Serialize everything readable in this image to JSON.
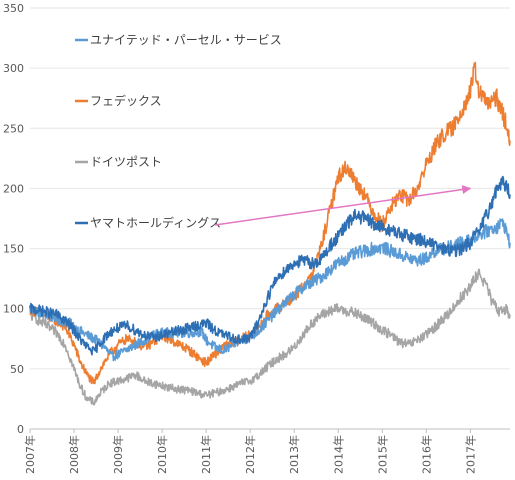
{
  "chart_data": {
    "type": "line",
    "title": "",
    "xlabel": "",
    "ylabel": "",
    "ylim": [
      0,
      350
    ],
    "yticks": [
      0,
      50,
      100,
      150,
      200,
      250,
      300,
      350
    ],
    "xlim": [
      2007.0,
      2017.9
    ],
    "xticks": [
      {
        "x": 2007,
        "label": "2007年"
      },
      {
        "x": 2008,
        "label": "2008年"
      },
      {
        "x": 2009,
        "label": "2009年"
      },
      {
        "x": 2010,
        "label": "2010年"
      },
      {
        "x": 2011,
        "label": "2011年"
      },
      {
        "x": 2012,
        "label": "2012年"
      },
      {
        "x": 2013,
        "label": "2013年"
      },
      {
        "x": 2014,
        "label": "2014年"
      },
      {
        "x": 2015,
        "label": "2015年"
      },
      {
        "x": 2016,
        "label": "2016年"
      },
      {
        "x": 2017,
        "label": "2017年"
      }
    ],
    "grid": "horizontal",
    "legend_placement": "inside-left",
    "series": [
      {
        "name": "ユナイテッド・パーセル・サービス",
        "color": "#5b9bd5",
        "points": [
          [
            2007.0,
            100
          ],
          [
            2007.3,
            96
          ],
          [
            2007.6,
            92
          ],
          [
            2007.9,
            88
          ],
          [
            2008.1,
            82
          ],
          [
            2008.3,
            78
          ],
          [
            2008.5,
            74
          ],
          [
            2008.7,
            68
          ],
          [
            2008.85,
            60
          ],
          [
            2009.0,
            62
          ],
          [
            2009.2,
            66
          ],
          [
            2009.4,
            70
          ],
          [
            2009.6,
            74
          ],
          [
            2009.8,
            78
          ],
          [
            2010.0,
            80
          ],
          [
            2010.3,
            80
          ],
          [
            2010.6,
            80
          ],
          [
            2010.9,
            81
          ],
          [
            2011.0,
            74
          ],
          [
            2011.2,
            68
          ],
          [
            2011.4,
            65
          ],
          [
            2011.6,
            70
          ],
          [
            2011.8,
            74
          ],
          [
            2012.0,
            76
          ],
          [
            2012.2,
            82
          ],
          [
            2012.4,
            90
          ],
          [
            2012.6,
            98
          ],
          [
            2012.8,
            105
          ],
          [
            2013.0,
            112
          ],
          [
            2013.2,
            118
          ],
          [
            2013.4,
            122
          ],
          [
            2013.6,
            126
          ],
          [
            2013.8,
            132
          ],
          [
            2014.0,
            138
          ],
          [
            2014.2,
            142
          ],
          [
            2014.4,
            146
          ],
          [
            2014.6,
            148
          ],
          [
            2014.8,
            150
          ],
          [
            2015.0,
            151
          ],
          [
            2015.2,
            148
          ],
          [
            2015.4,
            145
          ],
          [
            2015.6,
            142
          ],
          [
            2015.8,
            140
          ],
          [
            2016.0,
            142
          ],
          [
            2016.2,
            148
          ],
          [
            2016.4,
            150
          ],
          [
            2016.6,
            152
          ],
          [
            2016.8,
            155
          ],
          [
            2017.0,
            158
          ],
          [
            2017.2,
            162
          ],
          [
            2017.4,
            165
          ],
          [
            2017.6,
            168
          ],
          [
            2017.75,
            172
          ],
          [
            2017.85,
            160
          ],
          [
            2017.9,
            155
          ]
        ]
      },
      {
        "name": "フェデックス",
        "color": "#ed7d31",
        "points": [
          [
            2007.0,
            100
          ],
          [
            2007.3,
            95
          ],
          [
            2007.6,
            90
          ],
          [
            2007.8,
            85
          ],
          [
            2008.0,
            70
          ],
          [
            2008.15,
            55
          ],
          [
            2008.3,
            45
          ],
          [
            2008.45,
            38
          ],
          [
            2008.6,
            50
          ],
          [
            2008.8,
            62
          ],
          [
            2009.0,
            70
          ],
          [
            2009.2,
            75
          ],
          [
            2009.4,
            72
          ],
          [
            2009.6,
            68
          ],
          [
            2009.8,
            72
          ],
          [
            2010.0,
            78
          ],
          [
            2010.2,
            74
          ],
          [
            2010.4,
            70
          ],
          [
            2010.6,
            66
          ],
          [
            2010.8,
            60
          ],
          [
            2011.0,
            55
          ],
          [
            2011.2,
            62
          ],
          [
            2011.4,
            68
          ],
          [
            2011.6,
            72
          ],
          [
            2011.8,
            75
          ],
          [
            2012.0,
            78
          ],
          [
            2012.2,
            85
          ],
          [
            2012.4,
            95
          ],
          [
            2012.6,
            100
          ],
          [
            2012.8,
            105
          ],
          [
            2013.0,
            110
          ],
          [
            2013.2,
            118
          ],
          [
            2013.4,
            128
          ],
          [
            2013.6,
            150
          ],
          [
            2013.8,
            180
          ],
          [
            2014.0,
            210
          ],
          [
            2014.2,
            218
          ],
          [
            2014.4,
            205
          ],
          [
            2014.6,
            195
          ],
          [
            2014.8,
            180
          ],
          [
            2015.0,
            170
          ],
          [
            2015.2,
            185
          ],
          [
            2015.4,
            195
          ],
          [
            2015.6,
            190
          ],
          [
            2015.8,
            200
          ],
          [
            2016.0,
            220
          ],
          [
            2016.2,
            235
          ],
          [
            2016.4,
            245
          ],
          [
            2016.6,
            250
          ],
          [
            2016.8,
            265
          ],
          [
            2017.0,
            280
          ],
          [
            2017.1,
            300
          ],
          [
            2017.2,
            280
          ],
          [
            2017.4,
            270
          ],
          [
            2017.6,
            275
          ],
          [
            2017.75,
            260
          ],
          [
            2017.85,
            250
          ],
          [
            2017.9,
            240
          ]
        ]
      },
      {
        "name": "ドイツポスト",
        "color": "#a5a5a5",
        "points": [
          [
            2007.0,
            95
          ],
          [
            2007.3,
            88
          ],
          [
            2007.6,
            80
          ],
          [
            2007.8,
            70
          ],
          [
            2008.0,
            50
          ],
          [
            2008.15,
            35
          ],
          [
            2008.3,
            25
          ],
          [
            2008.45,
            22
          ],
          [
            2008.6,
            30
          ],
          [
            2008.8,
            38
          ],
          [
            2009.0,
            40
          ],
          [
            2009.2,
            42
          ],
          [
            2009.4,
            45
          ],
          [
            2009.6,
            40
          ],
          [
            2009.8,
            38
          ],
          [
            2010.0,
            36
          ],
          [
            2010.2,
            34
          ],
          [
            2010.4,
            33
          ],
          [
            2010.6,
            32
          ],
          [
            2010.8,
            30
          ],
          [
            2011.0,
            28
          ],
          [
            2011.2,
            30
          ],
          [
            2011.4,
            32
          ],
          [
            2011.6,
            35
          ],
          [
            2011.8,
            38
          ],
          [
            2012.0,
            40
          ],
          [
            2012.2,
            45
          ],
          [
            2012.4,
            52
          ],
          [
            2012.6,
            58
          ],
          [
            2012.8,
            62
          ],
          [
            2013.0,
            68
          ],
          [
            2013.2,
            78
          ],
          [
            2013.4,
            88
          ],
          [
            2013.6,
            94
          ],
          [
            2013.8,
            98
          ],
          [
            2014.0,
            100
          ],
          [
            2014.2,
            98
          ],
          [
            2014.4,
            96
          ],
          [
            2014.6,
            92
          ],
          [
            2014.8,
            88
          ],
          [
            2015.0,
            82
          ],
          [
            2015.2,
            78
          ],
          [
            2015.4,
            72
          ],
          [
            2015.6,
            70
          ],
          [
            2015.8,
            74
          ],
          [
            2016.0,
            78
          ],
          [
            2016.2,
            85
          ],
          [
            2016.4,
            92
          ],
          [
            2016.6,
            100
          ],
          [
            2016.8,
            110
          ],
          [
            2017.0,
            118
          ],
          [
            2017.1,
            125
          ],
          [
            2017.2,
            130
          ],
          [
            2017.35,
            120
          ],
          [
            2017.5,
            105
          ],
          [
            2017.65,
            98
          ],
          [
            2017.8,
            100
          ],
          [
            2017.9,
            95
          ]
        ]
      },
      {
        "name": "ヤマトホールディングス",
        "color": "#2e6fb4",
        "points": [
          [
            2007.0,
            100
          ],
          [
            2007.3,
            98
          ],
          [
            2007.6,
            95
          ],
          [
            2007.8,
            90
          ],
          [
            2008.0,
            82
          ],
          [
            2008.15,
            74
          ],
          [
            2008.3,
            68
          ],
          [
            2008.45,
            64
          ],
          [
            2008.6,
            72
          ],
          [
            2008.8,
            80
          ],
          [
            2009.0,
            84
          ],
          [
            2009.2,
            86
          ],
          [
            2009.4,
            82
          ],
          [
            2009.6,
            78
          ],
          [
            2009.8,
            76
          ],
          [
            2010.0,
            78
          ],
          [
            2010.2,
            80
          ],
          [
            2010.4,
            82
          ],
          [
            2010.6,
            84
          ],
          [
            2010.8,
            86
          ],
          [
            2011.0,
            88
          ],
          [
            2011.2,
            82
          ],
          [
            2011.4,
            78
          ],
          [
            2011.6,
            76
          ],
          [
            2011.8,
            74
          ],
          [
            2012.0,
            76
          ],
          [
            2012.2,
            90
          ],
          [
            2012.4,
            110
          ],
          [
            2012.6,
            125
          ],
          [
            2012.8,
            132
          ],
          [
            2013.0,
            138
          ],
          [
            2013.2,
            140
          ],
          [
            2013.4,
            138
          ],
          [
            2013.6,
            140
          ],
          [
            2013.8,
            152
          ],
          [
            2014.0,
            160
          ],
          [
            2014.2,
            170
          ],
          [
            2014.4,
            178
          ],
          [
            2014.6,
            175
          ],
          [
            2014.8,
            170
          ],
          [
            2015.0,
            168
          ],
          [
            2015.2,
            165
          ],
          [
            2015.4,
            162
          ],
          [
            2015.6,
            160
          ],
          [
            2015.8,
            158
          ],
          [
            2016.0,
            156
          ],
          [
            2016.2,
            152
          ],
          [
            2016.4,
            150
          ],
          [
            2016.6,
            148
          ],
          [
            2016.8,
            150
          ],
          [
            2017.0,
            155
          ],
          [
            2017.2,
            165
          ],
          [
            2017.4,
            180
          ],
          [
            2017.6,
            200
          ],
          [
            2017.75,
            205
          ],
          [
            2017.85,
            200
          ],
          [
            2017.9,
            195
          ]
        ]
      }
    ],
    "annotations": [
      {
        "type": "arrow",
        "from_series": "ヤマトホールディングス",
        "color": "#e377c2",
        "from": [
          2012.1,
          169
        ],
        "to": [
          2017.0,
          200
        ]
      }
    ]
  }
}
